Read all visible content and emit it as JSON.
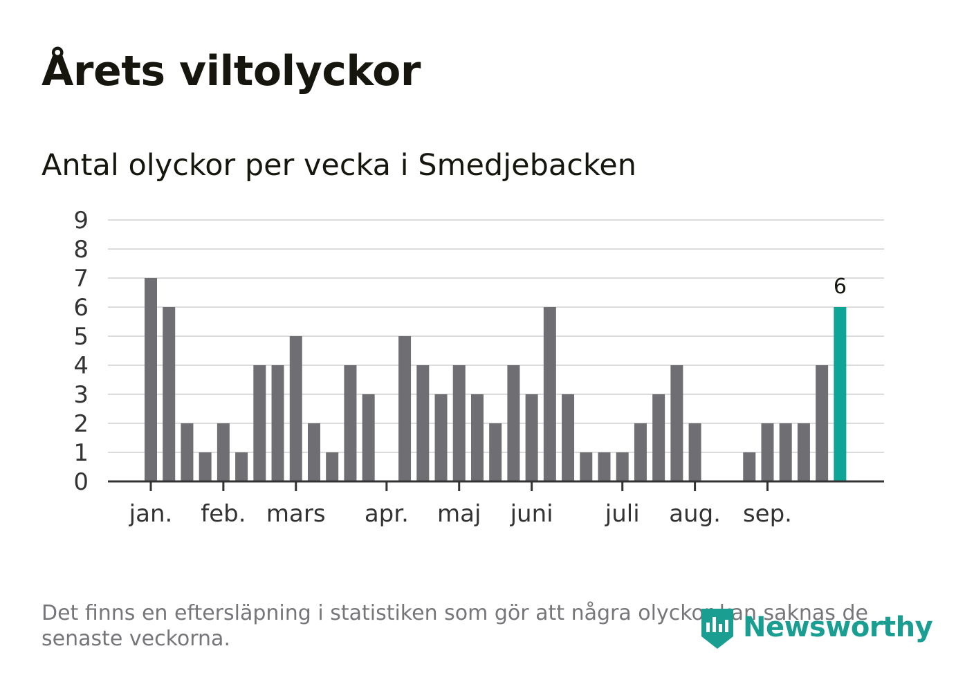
{
  "header": {
    "title": "Årets viltolyckor",
    "subtitle": "Antal olyckor per vecka i Smedjebacken"
  },
  "footer": {
    "note": "Det finns en eftersläpning i statistiken som gör att några olyckor kan saknas de senaste veckorna.",
    "brand": "Newsworthy"
  },
  "colors": {
    "bar": "#6f6e73",
    "highlight": "#0ea597",
    "grid": "#dcdcdc",
    "axis": "#333333",
    "brand": "#1a9e92"
  },
  "chart_data": {
    "type": "bar",
    "title": "Antal olyckor per vecka i Smedjebacken",
    "xlabel": "",
    "ylabel": "",
    "ylim": [
      0,
      9
    ],
    "yticks": [
      "0",
      "1",
      "2",
      "3",
      "4",
      "5",
      "6",
      "7",
      "8",
      "9"
    ],
    "grid": true,
    "weeks": [
      1,
      2,
      3,
      4,
      5,
      6,
      7,
      8,
      9,
      10,
      11,
      12,
      13,
      14,
      15,
      16,
      17,
      18,
      19,
      20,
      21,
      22,
      23,
      24,
      25,
      26,
      27,
      28,
      29,
      30,
      31,
      32,
      33,
      34,
      35,
      36,
      37,
      38,
      39
    ],
    "values": [
      7,
      6,
      2,
      1,
      2,
      1,
      4,
      4,
      5,
      2,
      1,
      4,
      3,
      0,
      5,
      4,
      3,
      4,
      3,
      2,
      4,
      3,
      6,
      3,
      1,
      1,
      1,
      2,
      3,
      4,
      2,
      0,
      0,
      1,
      2,
      2,
      2,
      4,
      6
    ],
    "highlight_index": 38,
    "highlight_label": "6",
    "month_labels": [
      {
        "label": "jan.",
        "week": 1
      },
      {
        "label": "feb.",
        "week": 5
      },
      {
        "label": "mars",
        "week": 9
      },
      {
        "label": "apr.",
        "week": 14
      },
      {
        "label": "maj",
        "week": 18
      },
      {
        "label": "juni",
        "week": 22
      },
      {
        "label": "juli",
        "week": 27
      },
      {
        "label": "aug.",
        "week": 31
      },
      {
        "label": "sep.",
        "week": 35
      }
    ]
  }
}
